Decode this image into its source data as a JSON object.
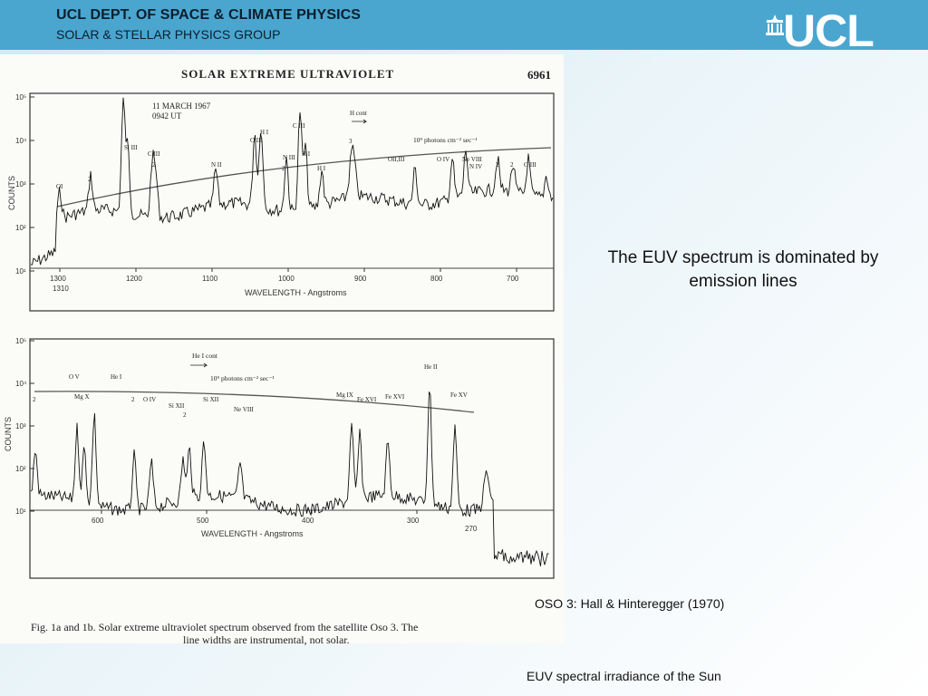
{
  "header": {
    "dept": "UCL DEPT. OF SPACE & CLIMATE PHYSICS",
    "group": "SOLAR & STELLAR PHYSICS GROUP",
    "logo_text": "UCL"
  },
  "figure": {
    "title": "SOLAR EXTREME ULTRAVIOLET",
    "number": "6961",
    "date_label": "11 MARCH 1967",
    "time_label": "0942 UT",
    "panel_a": {
      "ylabel": "COUNTS",
      "xlabel": "WAVELENGTH - Angstroms",
      "yticks": [
        "10⁵",
        "10⁴",
        "10³",
        "10²",
        "10¹"
      ],
      "xticks": [
        "1300",
        "1200",
        "1100",
        "1000",
        "900",
        "800",
        "700"
      ],
      "extra_tick": "1310",
      "cont_label": "H cont",
      "flux_label": "10⁹ photons cm⁻² sec⁻¹",
      "line_labels": [
        "OI",
        "2",
        "Si III",
        "C III",
        "2",
        "N II",
        "O III",
        "H I",
        "N III",
        "2",
        "C III",
        "H I",
        "H I",
        "3",
        "OII,III",
        "O IV",
        "Ne VIII",
        "N IV",
        "2",
        "2",
        "O III"
      ]
    },
    "panel_b": {
      "ylabel": "COUNTS",
      "xlabel": "WAVELENGTH - Angstroms",
      "yticks": [
        "10⁵",
        "10⁴",
        "10³",
        "10²",
        "10¹"
      ],
      "xticks": [
        "600",
        "500",
        "400",
        "300"
      ],
      "extra_tick": "270",
      "cont_label": "He I cont",
      "flux_label": "10⁹ photons cm⁻² sec⁻¹",
      "line_labels": [
        "2",
        "O V",
        "Mg X",
        "He I",
        "2",
        "O IV",
        "Si XII",
        "2",
        "Si XII",
        "Ne VIII",
        "Mg IX",
        "Fe XVI",
        "Fe XVI",
        "He II",
        "Fe XV"
      ]
    },
    "caption_line1": "Fig. 1a and 1b.  Solar extreme ultraviolet spectrum observed from the satellite Oso 3. The",
    "caption_line2": "line widths are instrumental, not solar."
  },
  "main_text": "The EUV spectrum is dominated by emission lines",
  "source": "OSO 3: Hall & Hinteregger (1970)",
  "footer": "EUV spectral irradiance of the Sun",
  "colors": {
    "header_bg": "#4aa6cf",
    "header_text": "#0b1f2e",
    "logo": "#ffffff"
  }
}
